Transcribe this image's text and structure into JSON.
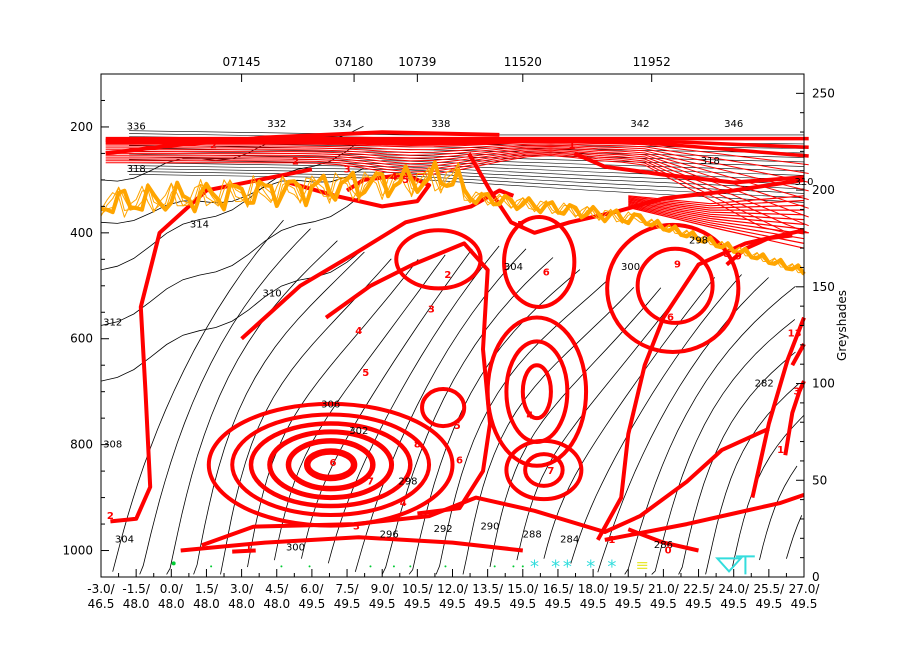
{
  "colors": {
    "background": "#ffffff",
    "axis": "#000000",
    "isentropes": "#000000",
    "wind_contours": "#ff0000",
    "tropopause": "#ffa500",
    "surface_symbols_green": "#00cc33",
    "surface_symbols_cyan": "#33dddd",
    "surface_symbols_yellow": "#e8e830"
  },
  "chart_data": {
    "type": "cross-section",
    "title": "",
    "stations": [
      "07145",
      "07180",
      "10739",
      "11520",
      "11952"
    ],
    "station_positions_deg": [
      3.0,
      7.8,
      10.5,
      15.0,
      20.5
    ],
    "x_ticks": [
      {
        "lon": "-3.0/",
        "lat": "46.5"
      },
      {
        "lon": "-1.5/",
        "lat": "48.0"
      },
      {
        "lon": "0.0/",
        "lat": "48.0"
      },
      {
        "lon": "1.5/",
        "lat": "48.0"
      },
      {
        "lon": "3.0/",
        "lat": "48.0"
      },
      {
        "lon": "4.5/",
        "lat": "48.0"
      },
      {
        "lon": "6.0/",
        "lat": "49.5"
      },
      {
        "lon": "7.5/",
        "lat": "49.5"
      },
      {
        "lon": "9.0/",
        "lat": "49.5"
      },
      {
        "lon": "10.5/",
        "lat": "49.5"
      },
      {
        "lon": "12.0/",
        "lat": "49.5"
      },
      {
        "lon": "13.5/",
        "lat": "49.5"
      },
      {
        "lon": "15.0/",
        "lat": "49.5"
      },
      {
        "lon": "16.5/",
        "lat": "49.5"
      },
      {
        "lon": "18.0/",
        "lat": "49.5"
      },
      {
        "lon": "19.5/",
        "lat": "49.5"
      },
      {
        "lon": "21.0/",
        "lat": "49.5"
      },
      {
        "lon": "22.5/",
        "lat": "49.5"
      },
      {
        "lon": "24.0/",
        "lat": "49.5"
      },
      {
        "lon": "25.5/",
        "lat": "49.5"
      },
      {
        "lon": "27.0/",
        "lat": "49.5"
      }
    ],
    "y_left": {
      "ticks": [
        200,
        400,
        600,
        800,
        1000
      ],
      "range": [
        1050,
        100
      ],
      "unit_hint": "hPa"
    },
    "y_right": {
      "label": "Greyshades",
      "ticks": [
        0,
        50,
        100,
        150,
        200,
        250
      ],
      "range": [
        0,
        260
      ]
    },
    "isentrope_labels": [
      {
        "value": "304",
        "x": -2.0,
        "p": 985
      },
      {
        "value": "308",
        "x": -2.5,
        "p": 805
      },
      {
        "value": "312",
        "x": -2.5,
        "p": 575
      },
      {
        "value": "318",
        "x": -1.5,
        "p": 285
      },
      {
        "value": "314",
        "x": 1.2,
        "p": 390
      },
      {
        "value": "310",
        "x": 4.3,
        "p": 520
      },
      {
        "value": "306",
        "x": 6.8,
        "p": 730
      },
      {
        "value": "302",
        "x": 8.0,
        "p": 780
      },
      {
        "value": "298",
        "x": 10.1,
        "p": 875
      },
      {
        "value": "300",
        "x": 5.3,
        "p": 1000
      },
      {
        "value": "296",
        "x": 9.3,
        "p": 975
      },
      {
        "value": "292",
        "x": 11.6,
        "p": 965
      },
      {
        "value": "290",
        "x": 13.6,
        "p": 960
      },
      {
        "value": "288",
        "x": 15.4,
        "p": 975
      },
      {
        "value": "284",
        "x": 17.0,
        "p": 985
      },
      {
        "value": "286",
        "x": 21.0,
        "p": 995
      },
      {
        "value": "282",
        "x": 25.3,
        "p": 690
      },
      {
        "value": "304",
        "x": 14.6,
        "p": 470
      },
      {
        "value": "300",
        "x": 19.6,
        "p": 470
      },
      {
        "value": "298",
        "x": 22.5,
        "p": 420
      },
      {
        "value": "336",
        "x": -1.5,
        "p": 205
      },
      {
        "value": "332",
        "x": 4.5,
        "p": 200
      },
      {
        "value": "334",
        "x": 7.3,
        "p": 200
      },
      {
        "value": "338",
        "x": 11.5,
        "p": 200
      },
      {
        "value": "342",
        "x": 20.0,
        "p": 200
      },
      {
        "value": "346",
        "x": 24.0,
        "p": 200
      },
      {
        "value": "310",
        "x": 27.0,
        "p": 310
      },
      {
        "value": "318",
        "x": 23.0,
        "p": 270
      }
    ],
    "wind_labels": [
      {
        "value": "2",
        "x": -2.6,
        "p": 935
      },
      {
        "value": "1",
        "x": 3.3,
        "p": 995
      },
      {
        "value": "3",
        "x": 7.9,
        "p": 955
      },
      {
        "value": "4",
        "x": 9.9,
        "p": 910
      },
      {
        "value": "5",
        "x": 8.3,
        "p": 665
      },
      {
        "value": "6",
        "x": 6.9,
        "p": 835
      },
      {
        "value": "7",
        "x": 8.5,
        "p": 870
      },
      {
        "value": "8",
        "x": 10.5,
        "p": 800
      },
      {
        "value": "4",
        "x": 8.0,
        "p": 585
      },
      {
        "value": "3",
        "x": 11.1,
        "p": 545
      },
      {
        "value": "2",
        "x": 11.8,
        "p": 480
      },
      {
        "value": "5",
        "x": 12.2,
        "p": 765
      },
      {
        "value": "6",
        "x": 12.3,
        "p": 830
      },
      {
        "value": "4",
        "x": 15.3,
        "p": 745
      },
      {
        "value": "7",
        "x": 16.2,
        "p": 850
      },
      {
        "value": "5",
        "x": 14.9,
        "p": 385
      },
      {
        "value": "6",
        "x": 16.0,
        "p": 475
      },
      {
        "value": "4",
        "x": 9.5,
        "p": 295
      },
      {
        "value": "5",
        "x": 10.0,
        "p": 300
      },
      {
        "value": "3",
        "x": 7.5,
        "p": 280
      },
      {
        "value": "9",
        "x": 21.6,
        "p": 460
      },
      {
        "value": "6",
        "x": 21.3,
        "p": 560
      },
      {
        "value": "8",
        "x": 23.7,
        "p": 440
      },
      {
        "value": "9",
        "x": 24.2,
        "p": 445
      },
      {
        "value": "13",
        "x": 26.6,
        "p": 590
      },
      {
        "value": "3",
        "x": 26.7,
        "p": 700
      },
      {
        "value": "1",
        "x": 26.0,
        "p": 810
      },
      {
        "value": "1",
        "x": 18.8,
        "p": 980
      },
      {
        "value": "0",
        "x": 21.2,
        "p": 1000
      },
      {
        "value": "1",
        "x": 17.1,
        "p": 235
      },
      {
        "value": "2",
        "x": 1.8,
        "p": 235
      },
      {
        "value": "2",
        "x": 5.3,
        "p": 265
      }
    ]
  }
}
